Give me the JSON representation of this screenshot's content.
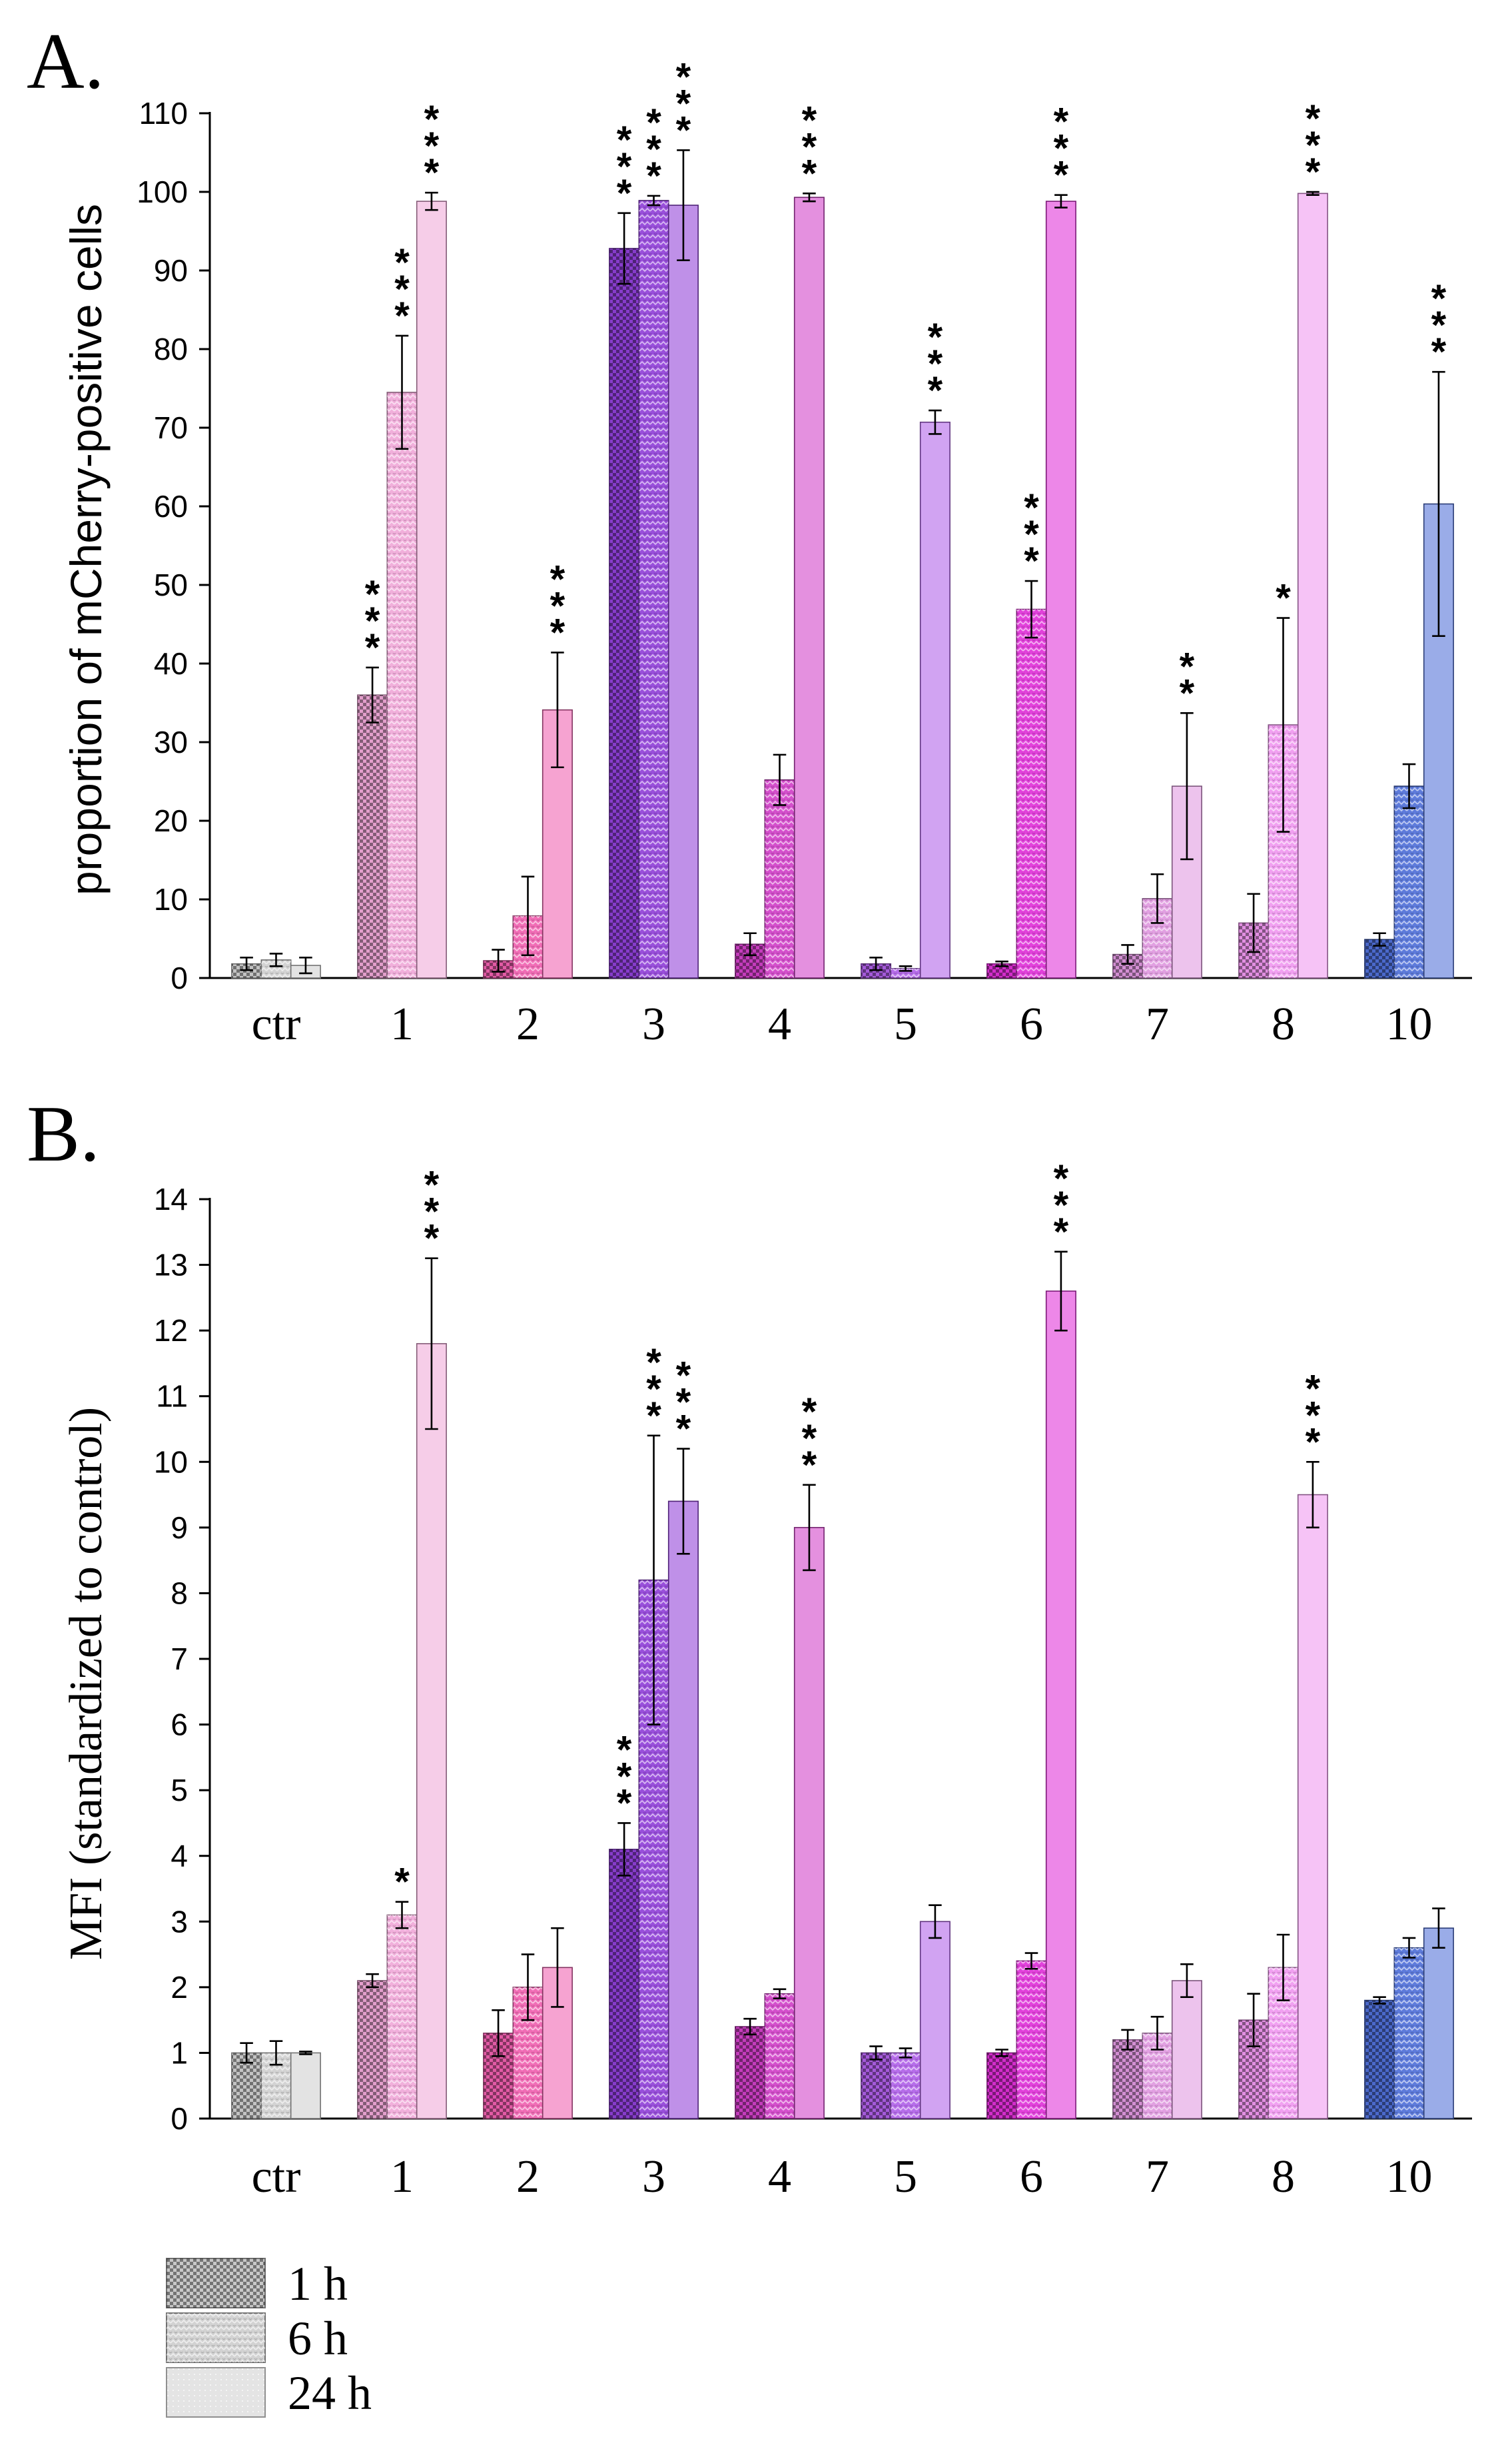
{
  "legend": {
    "items": [
      {
        "label": "1 h",
        "pattern": "checker"
      },
      {
        "label": "6 h",
        "pattern": "zigzag"
      },
      {
        "label": "24 h",
        "pattern": "solid"
      }
    ]
  },
  "chart_data": [
    {
      "panel": "A.",
      "type": "bar",
      "ylabel": "proportion of mCherry-positive cells",
      "ylabel_style": "sans",
      "ylim": [
        0,
        110
      ],
      "yticks": [
        0,
        10,
        20,
        30,
        40,
        50,
        60,
        70,
        80,
        90,
        100,
        110
      ],
      "categories": [
        "ctr",
        "1",
        "2",
        "3",
        "4",
        "5",
        "6",
        "7",
        "8",
        "10"
      ],
      "colors": [
        "#cfcfcf",
        "#f0a8d8",
        "#f060b0",
        "#9040d8",
        "#d040c8",
        "#b060e8",
        "#e030d8",
        "#e098e0",
        "#f098f0",
        "#5070d8"
      ],
      "series": [
        {
          "name": "1 h",
          "values": [
            1.8,
            36.0,
            2.2,
            92.8,
            4.3,
            1.8,
            1.8,
            3.0,
            7.0,
            4.9
          ],
          "errors": [
            0.8,
            3.5,
            1.4,
            4.5,
            1.4,
            0.8,
            0.3,
            1.2,
            3.7,
            0.8
          ],
          "stars": [
            "",
            "***",
            "",
            "***",
            "",
            "",
            "",
            "",
            "",
            ""
          ]
        },
        {
          "name": "6 h",
          "values": [
            2.3,
            74.5,
            7.9,
            98.9,
            25.2,
            1.2,
            46.9,
            10.1,
            32.2,
            24.4
          ],
          "errors": [
            0.8,
            7.2,
            5.0,
            0.6,
            3.2,
            0.3,
            3.6,
            3.1,
            13.6,
            2.8
          ],
          "stars": [
            "",
            "***",
            "",
            "***",
            "",
            "",
            "***",
            "",
            "*",
            ""
          ]
        },
        {
          "name": "24 h",
          "values": [
            1.6,
            98.8,
            34.1,
            98.3,
            99.3,
            70.7,
            98.8,
            24.4,
            99.8,
            60.3
          ],
          "errors": [
            1.0,
            1.1,
            7.3,
            7.0,
            0.5,
            1.5,
            0.8,
            9.3,
            0.2,
            16.8
          ],
          "stars": [
            "",
            "***",
            "***",
            "***",
            "***",
            "***",
            "***",
            "**",
            "***",
            "***"
          ]
        }
      ]
    },
    {
      "panel": "B.",
      "type": "bar",
      "ylabel": "MFI (standardized to control)",
      "ylabel_style": "serif",
      "ylim": [
        0,
        14
      ],
      "yticks": [
        0,
        1,
        2,
        3,
        4,
        5,
        6,
        7,
        8,
        9,
        10,
        11,
        12,
        13,
        14
      ],
      "categories": [
        "ctr",
        "1",
        "2",
        "3",
        "4",
        "5",
        "6",
        "7",
        "8",
        "10"
      ],
      "colors": [
        "#cfcfcf",
        "#f0a8d8",
        "#f060b0",
        "#9040d8",
        "#d040c8",
        "#b060e8",
        "#e030d8",
        "#e098e0",
        "#f098f0",
        "#5070d8"
      ],
      "series": [
        {
          "name": "1 h",
          "values": [
            1.0,
            2.1,
            1.3,
            4.1,
            1.4,
            1.0,
            1.0,
            1.2,
            1.5,
            1.8
          ],
          "errors": [
            0.15,
            0.1,
            0.35,
            0.4,
            0.12,
            0.1,
            0.05,
            0.15,
            0.4,
            0.05
          ],
          "stars": [
            "",
            "",
            "",
            "***",
            "",
            "",
            "",
            "",
            "",
            ""
          ]
        },
        {
          "name": "6 h",
          "values": [
            1.0,
            3.1,
            2.0,
            8.2,
            1.9,
            1.0,
            2.4,
            1.3,
            2.3,
            2.6
          ],
          "errors": [
            0.18,
            0.2,
            0.5,
            2.2,
            0.07,
            0.07,
            0.12,
            0.25,
            0.5,
            0.15
          ],
          "stars": [
            "",
            "*",
            "",
            "***",
            "",
            "",
            "",
            "",
            "",
            ""
          ]
        },
        {
          "name": "24 h",
          "values": [
            1.0,
            11.8,
            2.3,
            9.4,
            9.0,
            3.0,
            12.6,
            2.1,
            9.5,
            2.9
          ],
          "errors": [
            0.02,
            1.3,
            0.6,
            0.8,
            0.65,
            0.25,
            0.6,
            0.25,
            0.5,
            0.3
          ],
          "stars": [
            "",
            "***",
            "",
            "***",
            "***",
            "",
            "***",
            "",
            "***",
            ""
          ]
        }
      ]
    }
  ]
}
